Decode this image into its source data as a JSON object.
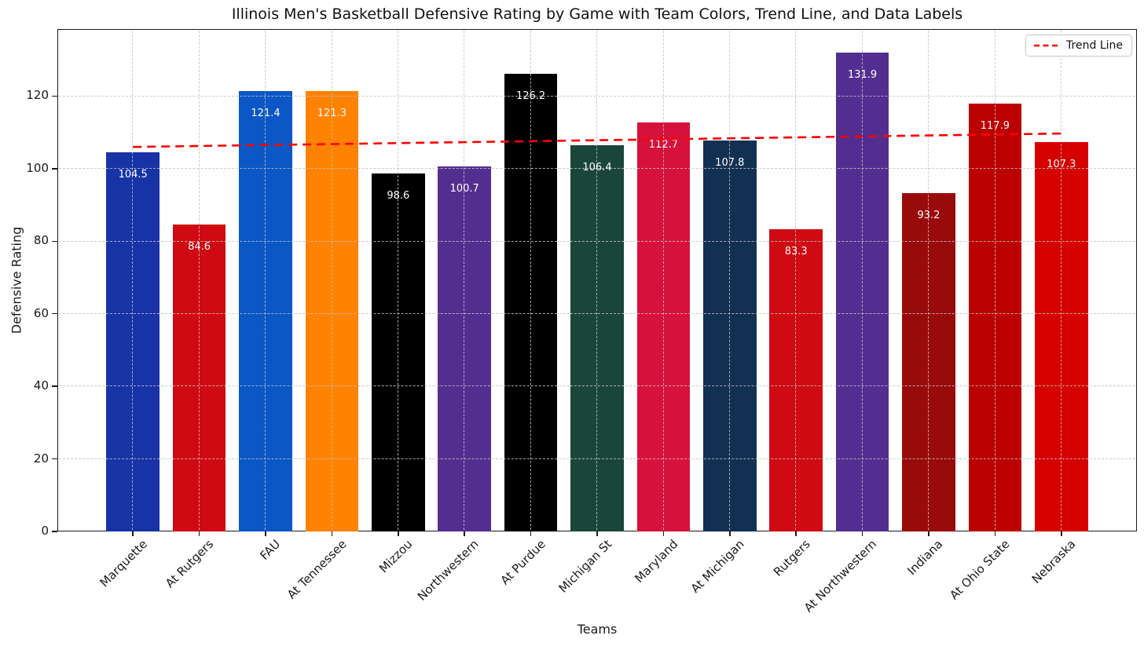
{
  "chart_data": {
    "type": "bar",
    "title": "Illinois Men's Basketball Defensive Rating by Game with Team Colors, Trend Line, and Data Labels",
    "xlabel": "Teams",
    "ylabel": "Defensive Rating",
    "categories": [
      "Marquette",
      "At Rutgers",
      "FAU",
      "At Tennessee",
      "Mizzou",
      "Northwestern",
      "At Purdue",
      "Michigan St",
      "Maryland",
      "At Michigan",
      "Rutgers",
      "At Northwestern",
      "Indiana",
      "At Ohio State",
      "Nebraska"
    ],
    "values": [
      104.5,
      84.6,
      121.4,
      121.3,
      98.6,
      100.7,
      126.2,
      106.4,
      112.7,
      107.8,
      83.3,
      131.9,
      93.2,
      117.9,
      107.3
    ],
    "bar_colors": [
      "#1733a6",
      "#cf0a12",
      "#0b57c6",
      "#ff8200",
      "#000000",
      "#532e91",
      "#000000",
      "#1a463a",
      "#d6123c",
      "#123052",
      "#cf0a12",
      "#532e91",
      "#990b0b",
      "#bb0000",
      "#d50000"
    ],
    "data_label_color": "#ffffff",
    "yticks": [
      0,
      20,
      40,
      60,
      80,
      100,
      120
    ],
    "ylim": [
      0,
      138.5
    ],
    "grid": true,
    "legend": {
      "label": "Trend Line",
      "position": "upper right"
    },
    "trend_line": {
      "color": "#ff0000",
      "style": "dashed",
      "y_start": 106.0,
      "y_end": 109.7
    }
  }
}
